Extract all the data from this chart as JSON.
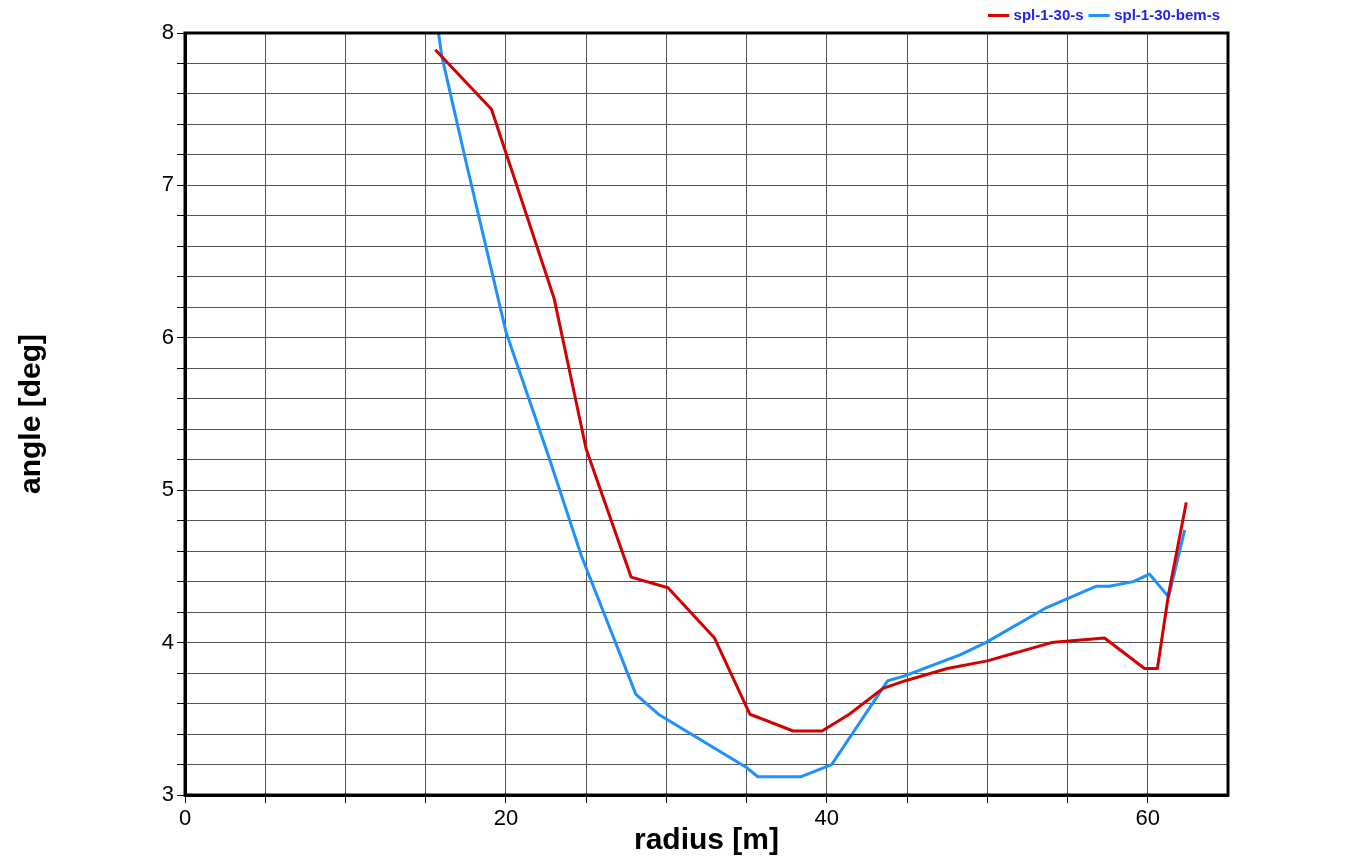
{
  "chart_data": {
    "type": "line",
    "xlabel": "radius [m]",
    "ylabel": "angle [deg]",
    "xlim": [
      0,
      65
    ],
    "ylim": [
      3,
      8
    ],
    "xticks": [
      0,
      {
        "value": 5,
        "label": null
      },
      {
        "value": 10,
        "label": null
      },
      {
        "value": 15,
        "label": null
      },
      20,
      {
        "value": 25,
        "label": null
      },
      {
        "value": 30,
        "label": null
      },
      {
        "value": 35,
        "label": null
      },
      40,
      {
        "value": 45,
        "label": null
      },
      {
        "value": 50,
        "label": null
      },
      {
        "value": 55,
        "label": null
      },
      60
    ],
    "yticks": [
      3,
      {
        "value": 3.2,
        "label": null
      },
      {
        "value": 3.4,
        "label": null
      },
      {
        "value": 3.6,
        "label": null
      },
      {
        "value": 3.8,
        "label": null
      },
      4,
      {
        "value": 4.2,
        "label": null
      },
      {
        "value": 4.4,
        "label": null
      },
      {
        "value": 4.6,
        "label": null
      },
      {
        "value": 4.8,
        "label": null
      },
      5,
      {
        "value": 5.2,
        "label": null
      },
      {
        "value": 5.4,
        "label": null
      },
      {
        "value": 5.6,
        "label": null
      },
      {
        "value": 5.8,
        "label": null
      },
      6,
      {
        "value": 6.2,
        "label": null
      },
      {
        "value": 6.4,
        "label": null
      },
      {
        "value": 6.6,
        "label": null
      },
      {
        "value": 6.8,
        "label": null
      },
      7,
      {
        "value": 7.2,
        "label": null
      },
      {
        "value": 7.4,
        "label": null
      },
      {
        "value": 7.6,
        "label": null
      },
      {
        "value": 7.8,
        "label": null
      },
      8
    ],
    "grid": true,
    "legend": "top right",
    "marker": "none",
    "line_style": "solid",
    "series": [
      {
        "name": "spl-1-30-s",
        "color": "#d40000",
        "x": [
          15.6,
          19.1,
          23.0,
          25.0,
          27.8,
          30.1,
          33.0,
          35.2,
          37.9,
          39.7,
          41.4,
          43.5,
          44.9,
          47.5,
          50.0,
          54.0,
          57.3,
          59.8,
          60.6,
          61.3,
          62.4
        ],
        "values": [
          7.89,
          7.5,
          6.26,
          5.27,
          4.43,
          4.36,
          4.03,
          3.53,
          3.42,
          3.42,
          3.53,
          3.7,
          3.75,
          3.83,
          3.88,
          4.0,
          4.03,
          3.83,
          3.83,
          4.32,
          4.92
        ]
      },
      {
        "name": "spl-1-30-bem-s",
        "color": "#1e90ff",
        "x": [
          15.8,
          16.0,
          17.5,
          20.0,
          22.7,
          24.7,
          28.1,
          29.5,
          35.0,
          35.7,
          38.4,
          40.3,
          43.8,
          44.8,
          48.3,
          49.9,
          53.7,
          56.8,
          57.6,
          59.1,
          60.1,
          61.3,
          62.3
        ],
        "values": [
          8.0,
          7.85,
          7.16,
          6.04,
          5.21,
          4.57,
          3.66,
          3.53,
          3.18,
          3.12,
          3.12,
          3.2,
          3.75,
          3.78,
          3.92,
          4.0,
          4.23,
          4.37,
          4.37,
          4.4,
          4.45,
          4.3,
          4.74
        ]
      }
    ]
  }
}
